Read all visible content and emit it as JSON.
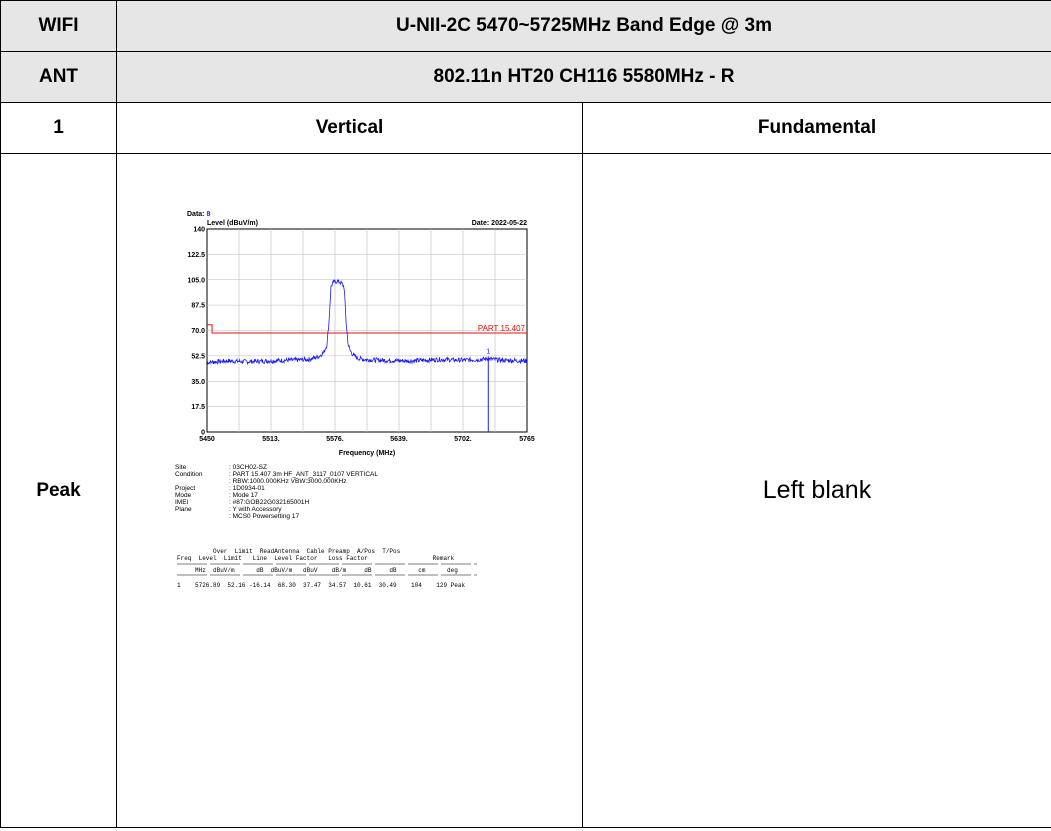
{
  "header": {
    "row1_label": "WIFI",
    "row1_title": "U-NII-2C 5470~5725MHz Band Edge @ 3m",
    "row2_label": "ANT",
    "row2_title": "802.11n HT20 CH116 5580MHz - R",
    "row3_index": "1",
    "row3_polarization": "Vertical",
    "row3_type": "Fundamental",
    "row4_detector": "Peak",
    "row4_right_note": "Left blank"
  },
  "chart_data": {
    "type": "line",
    "data_label": "Data:",
    "data_value": "8",
    "date": "Date: 2022-05-22",
    "ylabel": "Level (dBuV/m)",
    "xlabel": "Frequency (MHz)",
    "ylim": [
      0,
      140
    ],
    "xlim": [
      5450,
      5765
    ],
    "y_ticks": [
      "0",
      "17.5",
      "35.0",
      "52.5",
      "70.0",
      "87.5",
      "105.0",
      "122.5",
      "140"
    ],
    "x_ticks": [
      "5450",
      "5513.",
      "5576.",
      "5639.",
      "5702.",
      "5765"
    ],
    "limit_label": "PART 15.407",
    "limit_line": {
      "x": [
        5450,
        5455,
        5455,
        5765
      ],
      "y": [
        74,
        74,
        68.3,
        68.3
      ]
    },
    "marker": {
      "label": "1",
      "x": 5726.89,
      "y": 52.16
    },
    "series": [
      {
        "color": "#1a1aff",
        "x": [
          5450,
          5470,
          5490,
          5510,
          5530,
          5550,
          5560,
          5565,
          5568,
          5570,
          5572,
          5574,
          5578,
          5582,
          5585,
          5587,
          5589,
          5591,
          5594,
          5598,
          5605,
          5620,
          5650,
          5680,
          5700,
          5720,
          5726,
          5740,
          5765
        ],
        "y": [
          48,
          49,
          48.5,
          49,
          49.5,
          50,
          52,
          55,
          60,
          75,
          100,
          103,
          104,
          103,
          100,
          75,
          60,
          56,
          53,
          51,
          50,
          49.5,
          49,
          50,
          49.5,
          50,
          50.5,
          49.5,
          49
        ]
      }
    ]
  },
  "info": {
    "rows": [
      {
        "label": "Site",
        "value": ": 03CH02-SZ"
      },
      {
        "label": "Condition",
        "value": ": PART 15.407 3m HF_ANT_3117_0107 VERTICAL"
      },
      {
        "label": "",
        "value": ": RBW:1000.000KHz VBW:3000.000KHz"
      },
      {
        "label": "Project",
        "value": ": 1D0934-01"
      },
      {
        "label": "Mode",
        "value": ": Mode 17"
      },
      {
        "label": "IMEI",
        "value": ": #87:GOB22G032165001H"
      },
      {
        "label": "Plane",
        "value": ": Y with Accessory"
      },
      {
        "label": "",
        "value": ": MCS0 Powersetting 17"
      }
    ],
    "table_head1": "          Over  Limit  ReadAntenna  Cable Preamp  A/Pos  T/Pos",
    "table_head2": "Freq  Level  Limit   Line  Level Factor   Loss Factor                  Remark",
    "table_units": "     MHz  dBuV/m      dB  dBuV/m   dBuV    dB/m     dB     dB      cm      deg",
    "table_row": "1    5726.89  52.16 -16.14  68.30  37.47  34.57  10.61  30.49    104    129 Peak"
  }
}
